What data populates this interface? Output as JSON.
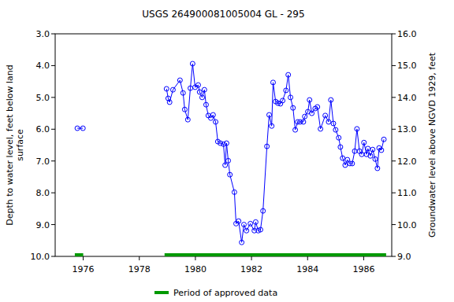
{
  "chart_data": {
    "type": "line",
    "title": "USGS 264900081005004 GL - 295",
    "y_label": "Depth to water level, feet below land\nsurface",
    "y2_label": "Groundwater level above NGVD 1929, feet",
    "xlim": [
      1975,
      1987
    ],
    "xticks": [
      1976,
      1978,
      1980,
      1982,
      1984,
      1986
    ],
    "ylim": [
      10,
      3
    ],
    "yticks": [
      {
        "value": 3,
        "label": "3.0"
      },
      {
        "value": 4,
        "label": "4.0"
      },
      {
        "value": 5,
        "label": "5.0"
      },
      {
        "value": 6,
        "label": "6.0"
      },
      {
        "value": 7,
        "label": "7.0"
      },
      {
        "value": 8,
        "label": "8.0"
      },
      {
        "value": 9,
        "label": "9.0"
      },
      {
        "value": 10,
        "label": "10.0"
      }
    ],
    "y2lim": [
      9,
      16
    ],
    "y2ticks": [
      {
        "value": 9,
        "label": "9.0"
      },
      {
        "value": 10,
        "label": "10.0"
      },
      {
        "value": 11,
        "label": "11.0"
      },
      {
        "value": 12,
        "label": "12.0"
      },
      {
        "value": 13,
        "label": "13.0"
      },
      {
        "value": 14,
        "label": "14.0"
      },
      {
        "value": 15,
        "label": "15.0"
      },
      {
        "value": 16,
        "label": "16.0"
      }
    ],
    "x": [
      1975.79,
      1975.99,
      null,
      1978.97,
      1979.03,
      1979.08,
      1979.2,
      1979.45,
      1979.56,
      1979.62,
      1979.73,
      1979.82,
      1979.9,
      1979.99,
      1980.1,
      1980.15,
      1980.24,
      1980.32,
      1980.38,
      1980.46,
      1980.55,
      1980.63,
      1980.72,
      1980.8,
      1980.89,
      1981.0,
      1981.06,
      1981.11,
      1981.17,
      1981.23,
      1981.39,
      1981.45,
      1981.54,
      1981.65,
      1981.73,
      1981.82,
      1981.96,
      1982.1,
      1982.15,
      1982.24,
      1982.32,
      1982.41,
      1982.55,
      1982.63,
      1982.72,
      1982.77,
      1982.86,
      1982.94,
      1983.03,
      1983.11,
      1983.23,
      1983.31,
      1983.39,
      1983.48,
      1983.56,
      1983.65,
      1983.73,
      1983.85,
      1983.9,
      1984.01,
      1984.07,
      1984.15,
      1984.27,
      1984.35,
      1984.46,
      1984.63,
      1984.75,
      1984.83,
      1984.92,
      1985.0,
      1985.11,
      1985.17,
      1985.25,
      1985.34,
      1985.42,
      1985.51,
      1985.59,
      1985.68,
      1985.76,
      1985.85,
      1985.93,
      1986.01,
      1986.1,
      1986.15,
      1986.24,
      1986.32,
      1986.41,
      1986.49,
      1986.55,
      1986.63,
      1986.72
    ],
    "series": [
      {
        "name": "Depth to water level",
        "color": "#0000ff",
        "marker": "circle-open",
        "line_style": "solid",
        "values": [
          5.97,
          5.97,
          null,
          4.73,
          5.03,
          5.15,
          4.76,
          4.46,
          4.86,
          5.38,
          5.7,
          4.71,
          3.94,
          4.68,
          4.61,
          4.83,
          5.0,
          4.76,
          5.23,
          5.57,
          5.65,
          5.55,
          5.77,
          6.39,
          6.44,
          6.47,
          7.13,
          6.44,
          6.99,
          7.43,
          7.98,
          8.97,
          8.89,
          9.56,
          9.0,
          9.19,
          8.97,
          9.19,
          8.92,
          9.19,
          9.16,
          8.57,
          6.54,
          5.55,
          5.9,
          4.53,
          5.13,
          5.18,
          5.2,
          5.1,
          4.78,
          4.29,
          5.0,
          5.33,
          6.02,
          5.77,
          5.77,
          5.77,
          5.6,
          5.45,
          5.08,
          5.5,
          5.35,
          5.3,
          5.99,
          5.57,
          5.77,
          5.08,
          5.82,
          6.02,
          6.27,
          6.56,
          6.91,
          7.13,
          6.96,
          7.08,
          7.08,
          6.69,
          5.99,
          6.69,
          6.79,
          6.42,
          6.79,
          6.61,
          6.84,
          6.64,
          6.94,
          7.23,
          6.59,
          6.66,
          6.32
        ]
      }
    ],
    "approved_periods": [
      [
        1975.7,
        1976.0
      ],
      [
        1978.9,
        1986.8
      ]
    ],
    "approved_label": "Period of approved data",
    "approved_color": "#009900"
  }
}
